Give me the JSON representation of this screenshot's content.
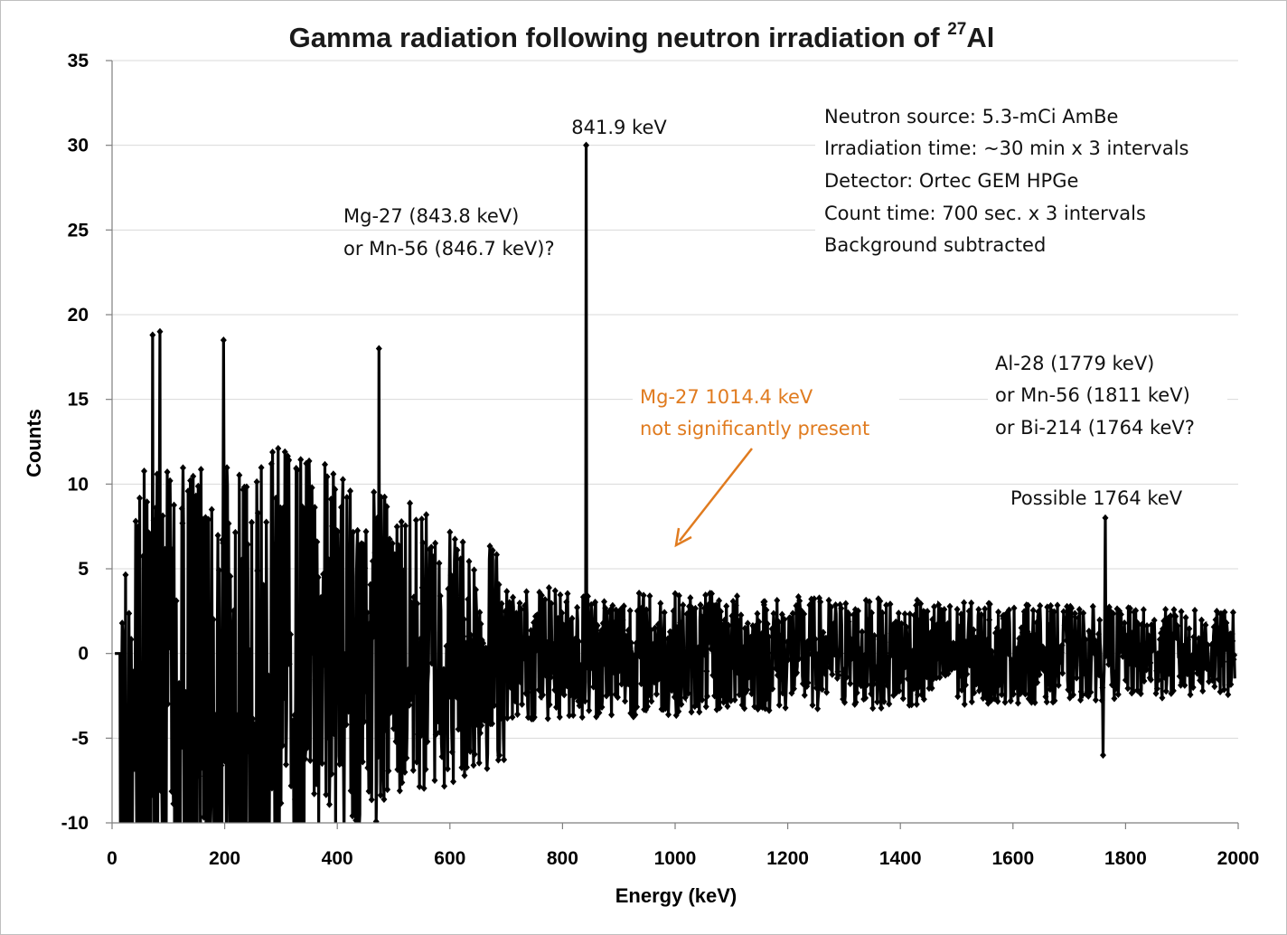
{
  "chart_data": {
    "type": "line",
    "title": "Gamma radiation following neutron irradiation of",
    "title_sup": "27",
    "title_element": "Al",
    "xlabel": "Energy (keV)",
    "ylabel": "Counts",
    "xlim": [
      0,
      2000
    ],
    "ylim": [
      -10,
      35
    ],
    "xticks": [
      0,
      200,
      400,
      600,
      800,
      1000,
      1200,
      1400,
      1600,
      1800,
      2000
    ],
    "yticks": [
      -10,
      -5,
      0,
      5,
      10,
      15,
      20,
      25,
      30,
      35
    ],
    "grid": "horizontal",
    "series_color": "#000000",
    "marker": "diamond",
    "spectrum_bins": 1990,
    "energy_start": 5,
    "energy_step": 1,
    "noise_seed": 27,
    "noise_amplitude_low_energy": 11,
    "noise_amplitude_high_energy": 2.5,
    "peaks": [
      {
        "energy": 841.9,
        "counts": 30
      },
      {
        "energy": 474,
        "counts": 18
      },
      {
        "energy": 85,
        "counts": 19
      },
      {
        "energy": 72,
        "counts": 18.8
      },
      {
        "energy": 198,
        "counts": 18.5
      },
      {
        "energy": 1764,
        "counts": 8
      },
      {
        "energy": 1760,
        "counts": -6
      }
    ],
    "annotations": {
      "peak_label": "841.9 keV",
      "candidate_line1": "Mg-27 (843.8 keV)",
      "candidate_line2": "or Mn-56 (846.7 keV)?",
      "info": [
        "Neutron source: 5.3-mCi AmBe",
        "Irradiation time: ~30 min x 3 intervals",
        "Detector: Ortec GEM HPGe",
        "Count time: 700 sec. x 3 intervals",
        "Background subtracted"
      ],
      "mg27_line1": "Mg-27  1014.4  keV",
      "mg27_line2": "not significantly present",
      "mg27_color": "#e07b1f",
      "al28": [
        "Al-28  (1779 keV)",
        "or Mn-56 (1811 keV)",
        "or Bi-214 (1764 keV?"
      ],
      "possible": "Possible 1764 keV"
    }
  }
}
